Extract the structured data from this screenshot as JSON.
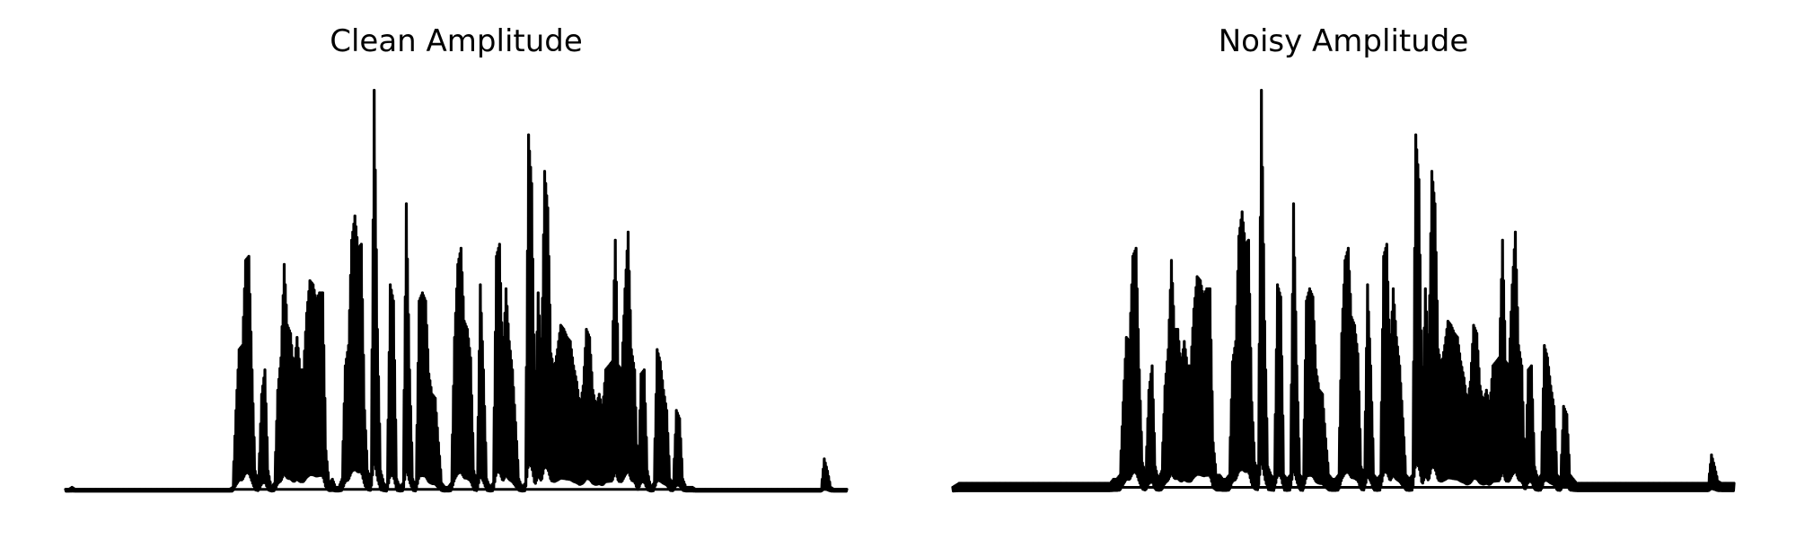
{
  "chart_data": [
    {
      "type": "line",
      "title": "Clean Amplitude",
      "axes_visible": false,
      "grid": false,
      "ylim": [
        0,
        1
      ],
      "line_color": "#000000",
      "series": [
        {
          "values": [
            0.005,
            0.005,
            0.01,
            0.005,
            0.005,
            0.005,
            0.005,
            0.005,
            0.005,
            0.005,
            0.005,
            0.005,
            0.005,
            0.005,
            0.005,
            0.005,
            0.005,
            0.005,
            0.005,
            0.005,
            0.005,
            0.005,
            0.005,
            0.005,
            0.005,
            0.005,
            0.005,
            0.005,
            0.005,
            0.005,
            0.005,
            0.005,
            0.005,
            0.005,
            0.005,
            0.005,
            0.005,
            0.005,
            0.005,
            0.005,
            0.005,
            0.005,
            0.005,
            0.005,
            0.005,
            0.005,
            0.005,
            0.005,
            0.005,
            0.005,
            0.005,
            0.005,
            0.01,
            0.2,
            0.35,
            0.36,
            0.57,
            0.58,
            0.3,
            0.05,
            0.02,
            0.24,
            0.3,
            0.05,
            0.01,
            0.02,
            0.25,
            0.33,
            0.56,
            0.41,
            0.39,
            0.3,
            0.38,
            0.3,
            0.3,
            0.44,
            0.52,
            0.51,
            0.47,
            0.49,
            0.49,
            0.1,
            0.02,
            0.03,
            0.01,
            0.01,
            0.03,
            0.31,
            0.36,
            0.62,
            0.68,
            0.6,
            0.61,
            0.2,
            0.05,
            0.03,
            0.99,
            0.4,
            0.05,
            0.02,
            0.01,
            0.51,
            0.47,
            0.03,
            0.01,
            0.02,
            0.71,
            0.3,
            0.03,
            0.01,
            0.47,
            0.49,
            0.47,
            0.29,
            0.24,
            0.23,
            0.12,
            0.02,
            0.01,
            0.01,
            0.02,
            0.38,
            0.56,
            0.6,
            0.42,
            0.4,
            0.33,
            0.05,
            0.02,
            0.51,
            0.3,
            0.03,
            0.01,
            0.02,
            0.58,
            0.61,
            0.32,
            0.5,
            0.37,
            0.3,
            0.17,
            0.03,
            0.01,
            0.02,
            0.88,
            0.76,
            0.2,
            0.49,
            0.32,
            0.79,
            0.7,
            0.34,
            0.3,
            0.35,
            0.41,
            0.4,
            0.38,
            0.37,
            0.31,
            0.27,
            0.21,
            0.26,
            0.4,
            0.38,
            0.25,
            0.21,
            0.24,
            0.2,
            0.3,
            0.31,
            0.32,
            0.62,
            0.31,
            0.3,
            0.5,
            0.64,
            0.35,
            0.3,
            0.02,
            0.29,
            0.3,
            0.05,
            0.01,
            0.02,
            0.35,
            0.32,
            0.25,
            0.2,
            0.03,
            0.02,
            0.2,
            0.18,
            0.03,
            0.01,
            0.01,
            0.01,
            0.005,
            0.005,
            0.005,
            0.005,
            0.005,
            0.005,
            0.005,
            0.005,
            0.005,
            0.005,
            0.005,
            0.005,
            0.005,
            0.005,
            0.005,
            0.005,
            0.005,
            0.005,
            0.005,
            0.005,
            0.005,
            0.005,
            0.005,
            0.005,
            0.005,
            0.005,
            0.005,
            0.005,
            0.005,
            0.005,
            0.005,
            0.005,
            0.005,
            0.005,
            0.005,
            0.005,
            0.005,
            0.005,
            0.005,
            0.005,
            0.08,
            0.05,
            0.01,
            0.005,
            0.005,
            0.005,
            0.005,
            0.005
          ]
        }
      ]
    },
    {
      "type": "line",
      "title": "Noisy Amplitude",
      "axes_visible": false,
      "grid": false,
      "ylim": [
        0,
        1
      ],
      "line_color": "#000000",
      "series": [
        {
          "values": [
            0.01,
            0.015,
            0.02,
            0.02,
            0.02,
            0.02,
            0.02,
            0.02,
            0.02,
            0.02,
            0.02,
            0.02,
            0.02,
            0.02,
            0.02,
            0.02,
            0.02,
            0.02,
            0.02,
            0.02,
            0.02,
            0.02,
            0.02,
            0.02,
            0.02,
            0.02,
            0.02,
            0.02,
            0.02,
            0.02,
            0.02,
            0.02,
            0.02,
            0.02,
            0.02,
            0.02,
            0.02,
            0.02,
            0.02,
            0.02,
            0.02,
            0.02,
            0.02,
            0.02,
            0.02,
            0.02,
            0.02,
            0.02,
            0.02,
            0.02,
            0.03,
            0.03,
            0.04,
            0.22,
            0.38,
            0.37,
            0.58,
            0.6,
            0.3,
            0.07,
            0.04,
            0.25,
            0.31,
            0.06,
            0.03,
            0.05,
            0.26,
            0.35,
            0.57,
            0.4,
            0.4,
            0.31,
            0.37,
            0.31,
            0.31,
            0.45,
            0.53,
            0.52,
            0.48,
            0.5,
            0.5,
            0.12,
            0.04,
            0.04,
            0.03,
            0.03,
            0.04,
            0.32,
            0.37,
            0.63,
            0.69,
            0.61,
            0.62,
            0.22,
            0.07,
            0.05,
            0.99,
            0.42,
            0.06,
            0.04,
            0.03,
            0.51,
            0.48,
            0.04,
            0.03,
            0.04,
            0.71,
            0.31,
            0.04,
            0.03,
            0.47,
            0.5,
            0.48,
            0.3,
            0.25,
            0.24,
            0.13,
            0.04,
            0.03,
            0.03,
            0.04,
            0.39,
            0.57,
            0.6,
            0.43,
            0.41,
            0.34,
            0.06,
            0.04,
            0.51,
            0.31,
            0.04,
            0.03,
            0.04,
            0.58,
            0.61,
            0.33,
            0.5,
            0.38,
            0.31,
            0.18,
            0.04,
            0.03,
            0.04,
            0.88,
            0.77,
            0.21,
            0.5,
            0.33,
            0.79,
            0.71,
            0.35,
            0.31,
            0.36,
            0.42,
            0.41,
            0.39,
            0.38,
            0.32,
            0.28,
            0.22,
            0.27,
            0.41,
            0.39,
            0.26,
            0.22,
            0.25,
            0.21,
            0.31,
            0.32,
            0.33,
            0.62,
            0.32,
            0.31,
            0.51,
            0.64,
            0.36,
            0.31,
            0.04,
            0.3,
            0.31,
            0.06,
            0.03,
            0.04,
            0.36,
            0.33,
            0.26,
            0.21,
            0.04,
            0.03,
            0.21,
            0.19,
            0.04,
            0.03,
            0.02,
            0.02,
            0.02,
            0.02,
            0.02,
            0.02,
            0.02,
            0.02,
            0.02,
            0.02,
            0.02,
            0.02,
            0.02,
            0.02,
            0.02,
            0.02,
            0.02,
            0.02,
            0.02,
            0.02,
            0.02,
            0.02,
            0.02,
            0.02,
            0.02,
            0.02,
            0.02,
            0.02,
            0.02,
            0.02,
            0.02,
            0.02,
            0.02,
            0.02,
            0.02,
            0.02,
            0.02,
            0.02,
            0.02,
            0.02,
            0.02,
            0.02,
            0.09,
            0.06,
            0.025,
            0.02,
            0.02,
            0.02,
            0.02,
            0.02
          ]
        }
      ]
    }
  ]
}
